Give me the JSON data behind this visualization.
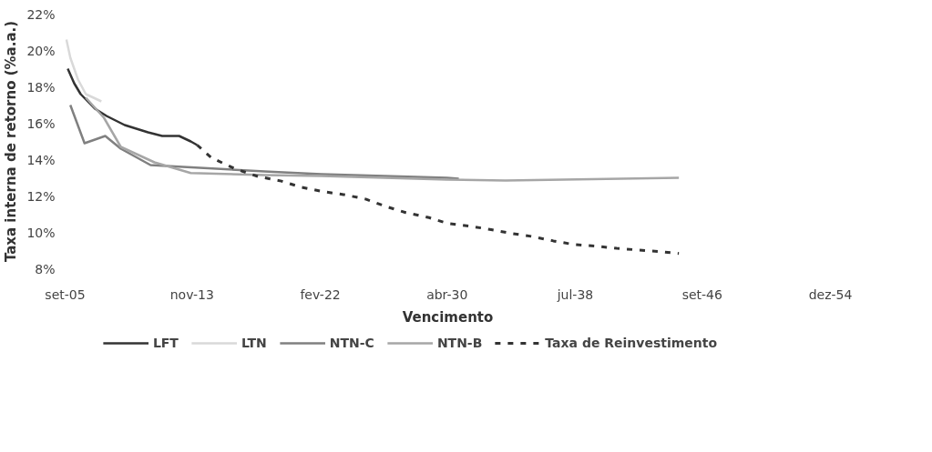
{
  "chart_data": {
    "type": "line",
    "xlabel": "Vencimento",
    "ylabel": "Taxa interna de retorno (%a.a.)",
    "xlim": [
      "2005-09",
      "2054-12"
    ],
    "xticks": [
      {
        "value": "2005-09",
        "label": "set-05"
      },
      {
        "value": "2013-11",
        "label": "nov-13"
      },
      {
        "value": "2022-02",
        "label": "fev-22"
      },
      {
        "value": "2030-04",
        "label": "abr-30"
      },
      {
        "value": "2038-07",
        "label": "jul-38"
      },
      {
        "value": "2046-09",
        "label": "set-46"
      },
      {
        "value": "2054-12",
        "label": "dez-54"
      }
    ],
    "ylim": [
      8,
      22
    ],
    "yticks": [
      {
        "value": 8,
        "label": "8%"
      },
      {
        "value": 10,
        "label": "10%"
      },
      {
        "value": 12,
        "label": "12%"
      },
      {
        "value": 14,
        "label": "14%"
      },
      {
        "value": 16,
        "label": "16%"
      },
      {
        "value": 18,
        "label": "18%"
      },
      {
        "value": 20,
        "label": "20%"
      },
      {
        "value": 22,
        "label": "22%"
      }
    ],
    "grid": false,
    "legend": "bottom",
    "marker": "none",
    "series": [
      {
        "name": "LFT",
        "color": "#333333",
        "line_style": "solid",
        "x": [
          "2005-11",
          "2006-04",
          "2006-09",
          "2007-08",
          "2008-05",
          "2009-07",
          "2011-01",
          "2011-12",
          "2013-01",
          "2013-10",
          "2014-03"
        ],
        "values": [
          19.0,
          18.2,
          17.6,
          16.8,
          16.4,
          15.9,
          15.5,
          15.3,
          15.3,
          15.0,
          14.8
        ]
      },
      {
        "name": "LTN",
        "color": "#d9d9d9",
        "line_style": "solid",
        "x": [
          "2005-10",
          "2006-01",
          "2006-07",
          "2007-01",
          "2008-01"
        ],
        "values": [
          20.6,
          19.6,
          18.4,
          17.6,
          17.2
        ]
      },
      {
        "name": "NTN-C",
        "color": "#808080",
        "line_style": "solid",
        "x": [
          "2006-01",
          "2006-12",
          "2008-04",
          "2009-04",
          "2011-03",
          "2013-04",
          "2018-07",
          "2022-03",
          "2030-04",
          "2031-01"
        ],
        "values": [
          17.0,
          14.9,
          15.3,
          14.6,
          13.7,
          13.6,
          13.35,
          13.2,
          13.0,
          12.95
        ]
      },
      {
        "name": "NTN-B",
        "color": "#a6a6a6",
        "line_style": "solid",
        "x": [
          "2007-01",
          "2008-03",
          "2009-04",
          "2011-06",
          "2013-10",
          "2018-07",
          "2022-03",
          "2030-04",
          "2034-01",
          "2045-03"
        ],
        "values": [
          17.4,
          16.3,
          14.7,
          13.85,
          13.26,
          13.15,
          13.1,
          12.9,
          12.85,
          13.0
        ]
      },
      {
        "name": "Taxa de Reinvestimento",
        "color": "#333333",
        "line_style": "dashed",
        "x": [
          "2014-03",
          "2015-02",
          "2016-08",
          "2018-02",
          "2019-08",
          "2020-11",
          "2022-04",
          "2023-08",
          "2025-01",
          "2026-05",
          "2027-08",
          "2029-02",
          "2030-04",
          "2031-09",
          "2033-02",
          "2034-06",
          "2035-10",
          "2037-02",
          "2038-06",
          "2040-01",
          "2041-03",
          "2042-08",
          "2043-11",
          "2045-03"
        ],
        "values": [
          14.8,
          14.1,
          13.5,
          13.07,
          12.82,
          12.49,
          12.24,
          12.08,
          11.83,
          11.42,
          11.09,
          10.81,
          10.5,
          10.35,
          10.15,
          9.94,
          9.77,
          9.53,
          9.33,
          9.23,
          9.12,
          9.03,
          8.95,
          8.84
        ]
      }
    ]
  }
}
